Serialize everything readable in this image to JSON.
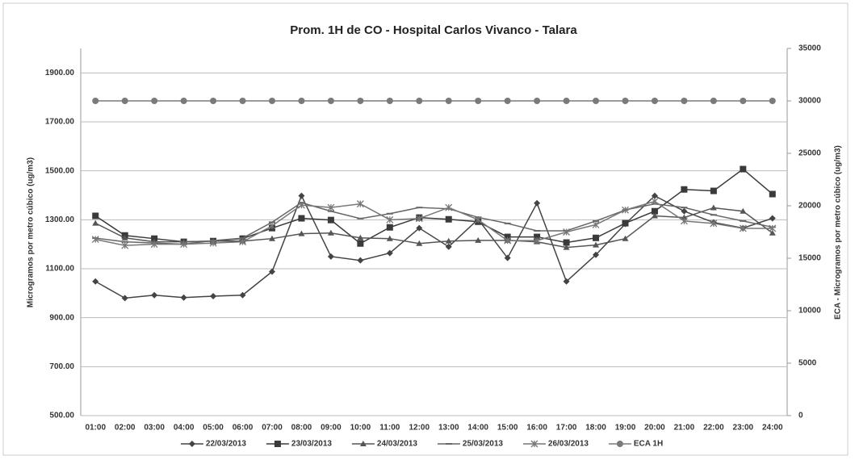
{
  "chart_data": {
    "type": "line",
    "title": "Prom. 1H de CO - Hospital Carlos Vivanco - Talara",
    "y_label": "Microgramos por metro cúbico (ug/m3)",
    "y2_label": "ECA - Microgramos por metro cúbico (ug/m3)",
    "categories": [
      "01:00",
      "02:00",
      "03:00",
      "04:00",
      "05:00",
      "06:00",
      "07:00",
      "08:00",
      "09:00",
      "10:00",
      "11:00",
      "12:00",
      "13:00",
      "14:00",
      "15:00",
      "16:00",
      "17:00",
      "18:00",
      "19:00",
      "20:00",
      "21:00",
      "22:00",
      "23:00",
      "24:00"
    ],
    "series": [
      {
        "name": "22/03/2013",
        "color": "#444444",
        "marker": "diamond",
        "values": [
          1048,
          980,
          992,
          982,
          988,
          992,
          1088,
          1398,
          1150,
          1134,
          1164,
          1266,
          1190,
          1302,
          1144,
          1368,
          1048,
          1157,
          1283,
          1398,
          1335,
          1289,
          1266,
          1306
        ]
      },
      {
        "name": "23/03/2013",
        "color": "#3a3a3a",
        "marker": "square",
        "values": [
          1316,
          1236,
          1223,
          1210,
          1213,
          1223,
          1266,
          1306,
          1299,
          1203,
          1269,
          1309,
          1302,
          1292,
          1230,
          1230,
          1207,
          1226,
          1286,
          1335,
          1424,
          1418,
          1507,
          1405
        ]
      },
      {
        "name": "24/03/2013",
        "color": "#555555",
        "marker": "triangle",
        "values": [
          1286,
          1226,
          1210,
          1210,
          1213,
          1213,
          1223,
          1243,
          1246,
          1226,
          1223,
          1203,
          1213,
          1216,
          1216,
          1210,
          1187,
          1197,
          1223,
          1316,
          1309,
          1349,
          1335,
          1246
        ]
      },
      {
        "name": "25/03/2013",
        "color": "#666666",
        "marker": "dash",
        "values": [
          1225,
          1210,
          1205,
          1200,
          1215,
          1225,
          1290,
          1370,
          1335,
          1305,
          1325,
          1350,
          1345,
          1310,
          1285,
          1255,
          1255,
          1295,
          1340,
          1365,
          1350,
          1320,
          1295,
          1270
        ]
      },
      {
        "name": "26/03/2013",
        "color": "#777777",
        "marker": "star",
        "values": [
          1220,
          1195,
          1200,
          1200,
          1205,
          1210,
          1275,
          1360,
          1350,
          1365,
          1300,
          1305,
          1350,
          1300,
          1215,
          1215,
          1250,
          1280,
          1340,
          1375,
          1295,
          1285,
          1265,
          1265
        ]
      },
      {
        "name": "ECA 1H",
        "color": "#7a7a7a",
        "marker": "circle",
        "axis": "y2",
        "values": [
          30000,
          30000,
          30000,
          30000,
          30000,
          30000,
          30000,
          30000,
          30000,
          30000,
          30000,
          30000,
          30000,
          30000,
          30000,
          30000,
          30000,
          30000,
          30000,
          30000,
          30000,
          30000,
          30000,
          30000
        ]
      }
    ],
    "ylim": [
      500,
      2000
    ],
    "yticks": [
      {
        "value": 500,
        "label": "500.00"
      },
      {
        "value": 700,
        "label": "700.00"
      },
      {
        "value": 900,
        "label": "900.00"
      },
      {
        "value": 1100,
        "label": "1100.00"
      },
      {
        "value": 1300,
        "label": "1300.00"
      },
      {
        "value": 1500,
        "label": "1500.00"
      },
      {
        "value": 1700,
        "label": "1700.00"
      },
      {
        "value": 1900,
        "label": "1900.00"
      }
    ],
    "y2lim": [
      0,
      35000
    ],
    "y2ticks": [
      0,
      5000,
      10000,
      15000,
      20000,
      25000,
      30000,
      35000
    ],
    "grid": true
  }
}
